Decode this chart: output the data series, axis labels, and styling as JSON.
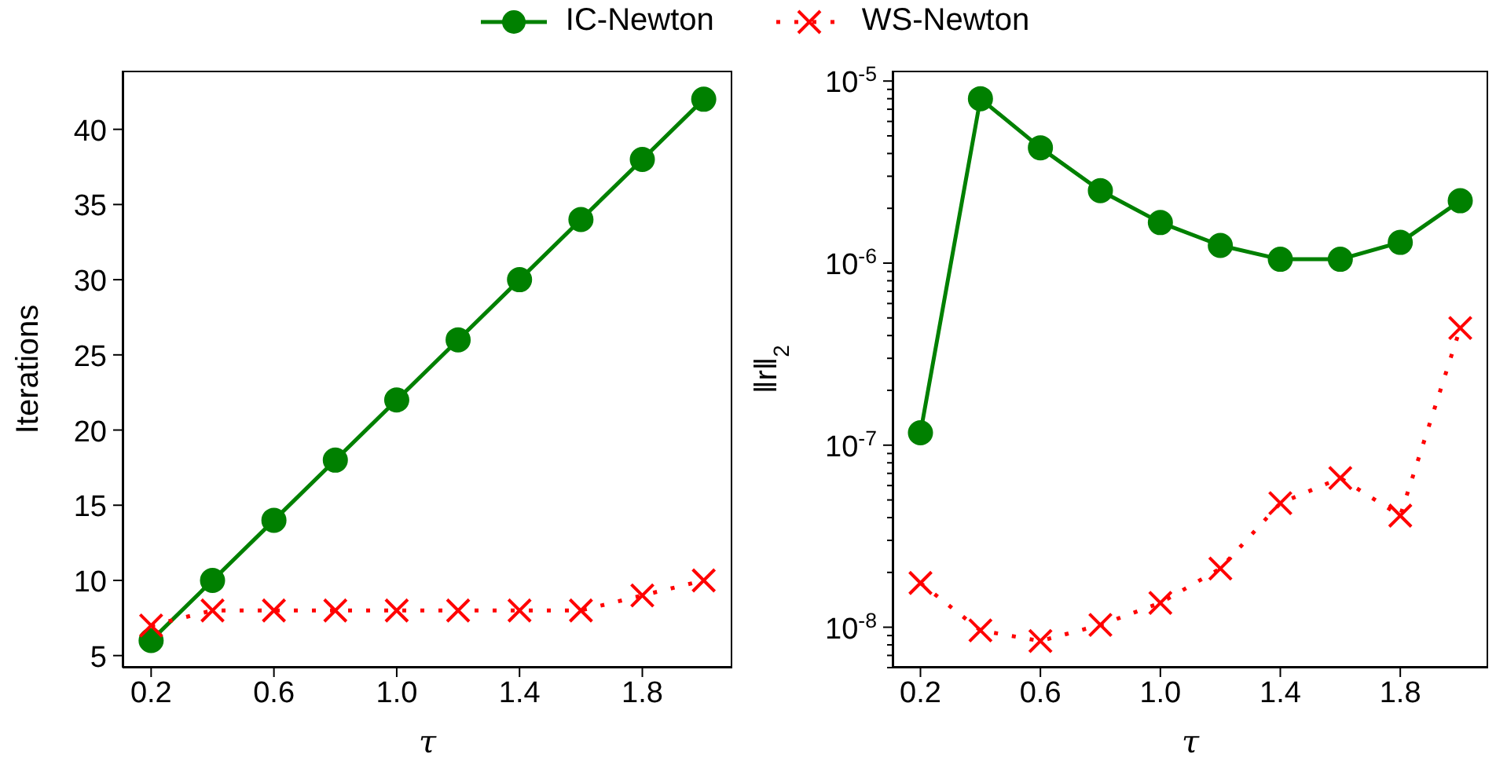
{
  "chart_data": [
    {
      "type": "line",
      "xlabel": "τ",
      "ylabel": "Iterations",
      "x": [
        0.2,
        0.4,
        0.6,
        0.8,
        1.0,
        1.2,
        1.4,
        1.6,
        1.8,
        2.0
      ],
      "xlim": [
        0.107,
        2.093
      ],
      "xticks": [
        0.2,
        0.6,
        {
          "value": 1,
          "label": "1.0"
        },
        1.4,
        1.8
      ],
      "ylim": [
        4.2,
        43.9
      ],
      "yticks": [
        5,
        10,
        15,
        20,
        25,
        30,
        35,
        40
      ],
      "grid": false,
      "legend": "top",
      "series": [
        {
          "name": "IC-Newton",
          "color": "#008000",
          "marker": "circle",
          "line_style": "solid",
          "values": [
            6,
            10,
            14,
            18,
            22,
            26,
            30,
            34,
            38,
            42
          ]
        },
        {
          "name": "WS-Newton",
          "color": "#ff0000",
          "marker": "cross",
          "line_style": "dotted",
          "values": [
            7,
            8,
            8,
            8,
            8,
            8,
            8,
            8,
            9,
            10
          ]
        }
      ]
    },
    {
      "type": "line",
      "xlabel": "τ",
      "ylabel": "‖r‖$_{2}$",
      "log": "y",
      "x": [
        0.2,
        0.4,
        0.6,
        0.8,
        1.0,
        1.2,
        1.4,
        1.6,
        1.8,
        2.0
      ],
      "xlim": [
        0.107,
        2.093
      ],
      "xticks": [
        0.2,
        0.6,
        {
          "value": 1,
          "label": "1.0"
        },
        1.4,
        1.8
      ],
      "ylim": [
        6e-09,
        1.14e-05
      ],
      "yticks": [
        {
          "value": 6e-09,
          "label": null
        },
        {
          "value": 7e-09,
          "label": null
        },
        {
          "value": 8e-09,
          "label": null
        },
        {
          "value": 9e-09,
          "label": null
        },
        {
          "value": 1e-08,
          "label": "10$^{-8}$"
        },
        {
          "value": 2e-08,
          "label": null
        },
        {
          "value": 3e-08,
          "label": null
        },
        {
          "value": 4e-08,
          "label": null
        },
        {
          "value": 5e-08,
          "label": null
        },
        {
          "value": 6e-08,
          "label": null
        },
        {
          "value": 7e-08,
          "label": null
        },
        {
          "value": 8e-08,
          "label": null
        },
        {
          "value": 9e-08,
          "label": null
        },
        {
          "value": 1e-07,
          "label": "10$^{-7}$"
        },
        {
          "value": 2e-07,
          "label": null
        },
        {
          "value": 3e-07,
          "label": null
        },
        {
          "value": 4e-07,
          "label": null
        },
        {
          "value": 5e-07,
          "label": null
        },
        {
          "value": 6e-07,
          "label": null
        },
        {
          "value": 7e-07,
          "label": null
        },
        {
          "value": 8e-07,
          "label": null
        },
        {
          "value": 9e-07,
          "label": null
        },
        {
          "value": 1e-06,
          "label": "10$^{-6}$"
        },
        {
          "value": 2e-06,
          "label": null
        },
        {
          "value": 3e-06,
          "label": null
        },
        {
          "value": 4e-06,
          "label": null
        },
        {
          "value": 5e-06,
          "label": null
        },
        {
          "value": 6e-06,
          "label": null
        },
        {
          "value": 7e-06,
          "label": null
        },
        {
          "value": 8e-06,
          "label": null
        },
        {
          "value": 9e-06,
          "label": null
        },
        {
          "value": 1e-05,
          "label": "10$^{-5}$"
        }
      ],
      "grid": false,
      "series": [
        {
          "color": "#008000",
          "marker": "circle",
          "line_style": "solid",
          "values": [
            1.17e-07,
            8e-06,
            4.3e-06,
            2.5e-06,
            1.67e-06,
            1.25e-06,
            1.05e-06,
            1.05e-06,
            1.3e-06,
            2.2e-06
          ]
        },
        {
          "color": "#ff0000",
          "marker": "cross",
          "line_style": "dotted",
          "values": [
            1.75e-08,
            9.6e-09,
            8.4e-09,
            1.03e-08,
            1.36e-08,
            2.1e-08,
            4.8e-08,
            6.6e-08,
            4.1e-08,
            4.4e-07
          ]
        }
      ]
    }
  ]
}
